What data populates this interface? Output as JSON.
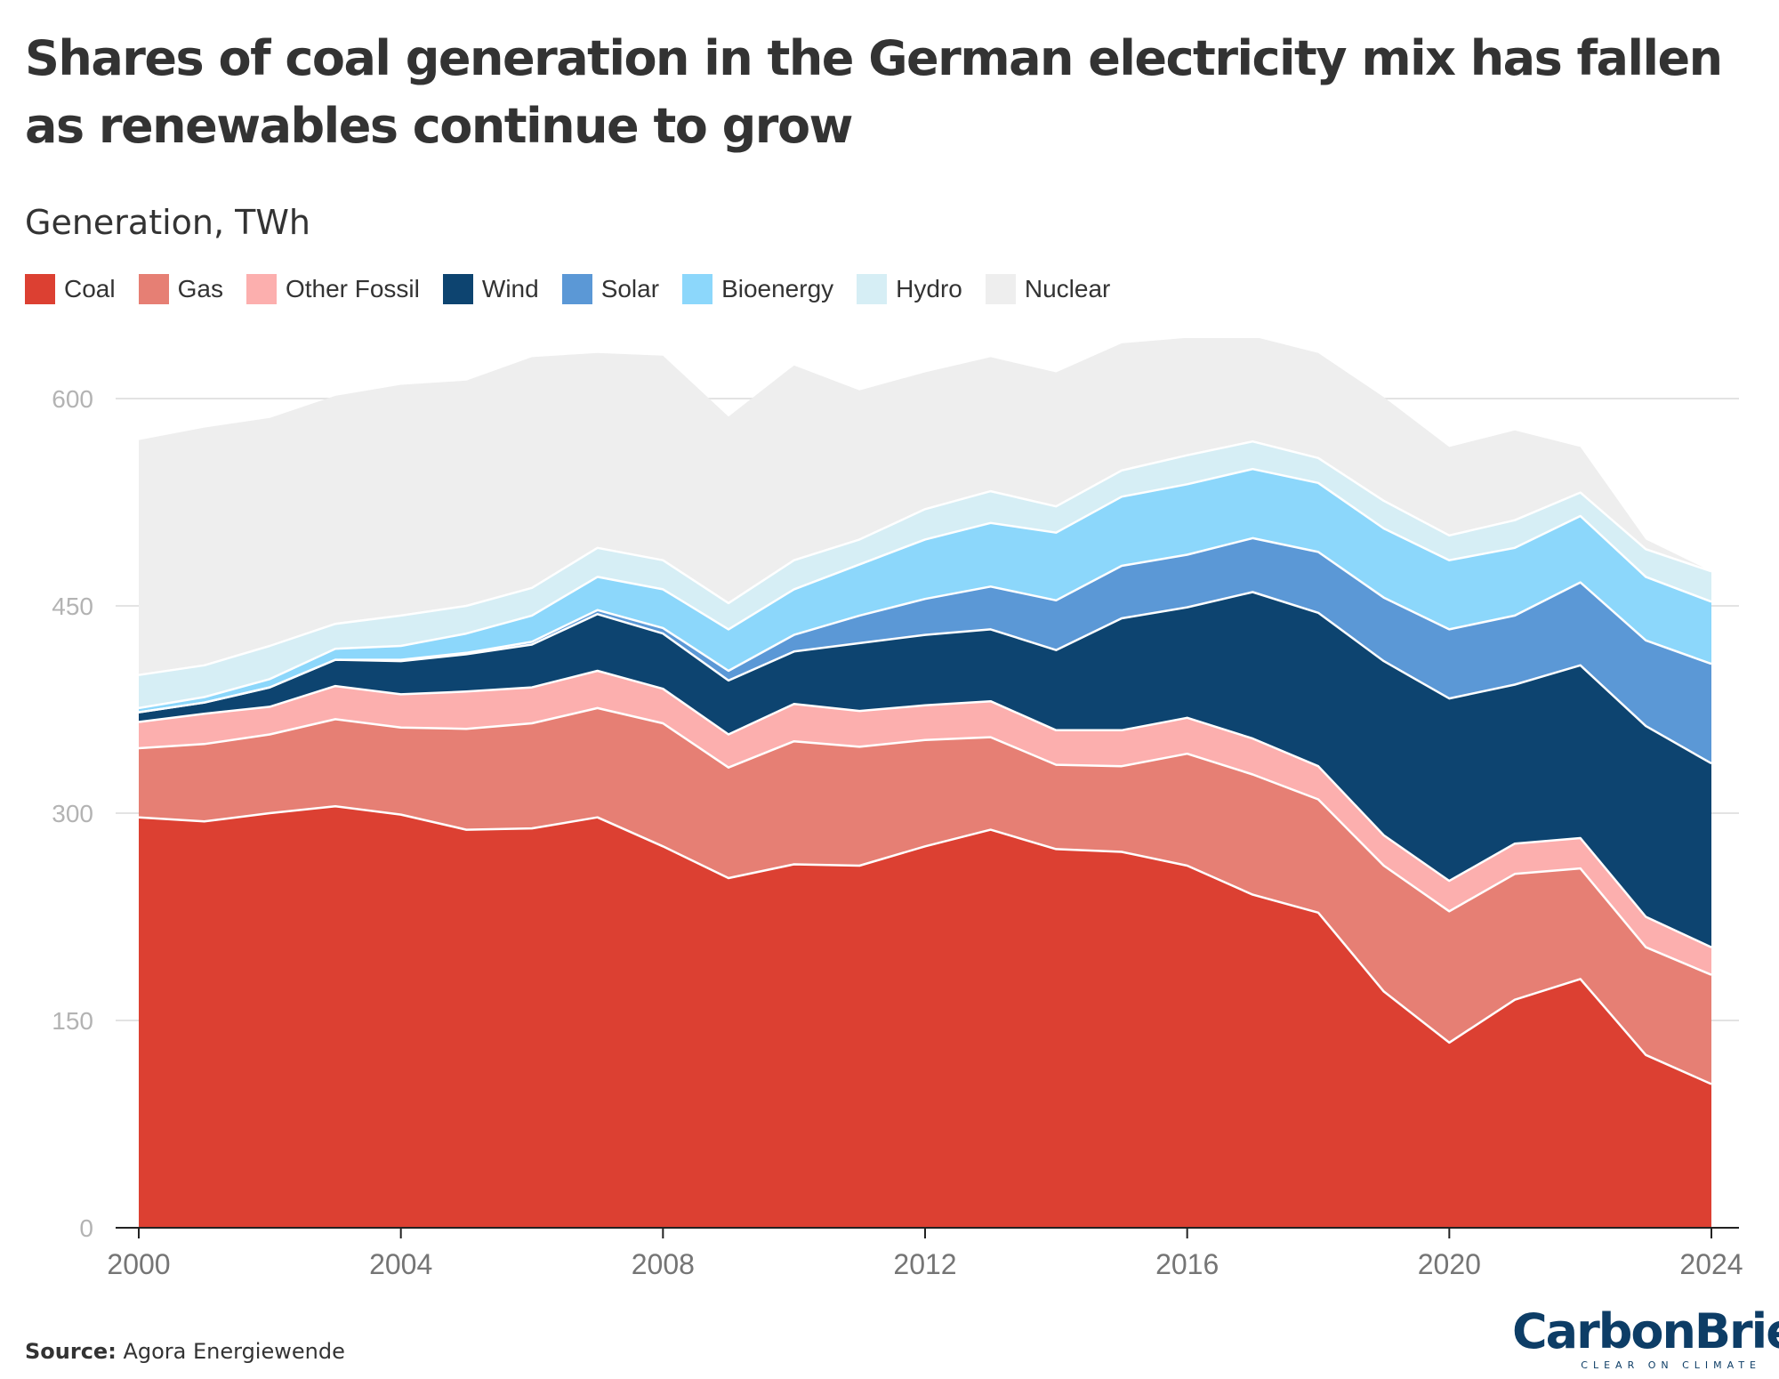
{
  "title": "Shares of coal generation in the German electricity mix has fallen as renewables continue to grow",
  "subtitle": "Generation, TWh",
  "source": {
    "label": "Source:",
    "text": "Agora Energiewende"
  },
  "logo": {
    "name": "CarbonBrief",
    "tagline": "CLEAR ON CLIMATE"
  },
  "legend": [
    {
      "label": "Coal",
      "color": "#dc4032"
    },
    {
      "label": "Gas",
      "color": "#e67f74"
    },
    {
      "label": "Other Fossil",
      "color": "#fcafae"
    },
    {
      "label": "Wind",
      "color": "#0d4470"
    },
    {
      "label": "Solar",
      "color": "#5b98d6"
    },
    {
      "label": "Bioenergy",
      "color": "#8cd7fb"
    },
    {
      "label": "Hydro",
      "color": "#d6eef5"
    },
    {
      "label": "Nuclear",
      "color": "#eeeeee"
    }
  ],
  "chart_data": {
    "type": "area",
    "stacked": true,
    "title": "Shares of coal generation in the German electricity mix has fallen as renewables continue to grow",
    "subtitle": "Generation, TWh",
    "xlabel": "",
    "ylabel": "",
    "ylim": [
      0,
      630
    ],
    "yticks": [
      0,
      150,
      300,
      450,
      600
    ],
    "xticks": [
      2000,
      2004,
      2008,
      2012,
      2016,
      2020,
      2024
    ],
    "grid": "horizontal",
    "legend_position": "top",
    "x": [
      2000,
      2001,
      2002,
      2003,
      2004,
      2005,
      2006,
      2007,
      2008,
      2009,
      2010,
      2011,
      2012,
      2013,
      2014,
      2015,
      2016,
      2017,
      2018,
      2019,
      2020,
      2021,
      2022,
      2023,
      2024
    ],
    "series": [
      {
        "name": "Coal",
        "color": "#dc4032",
        "values": [
          297,
          294,
          300,
          305,
          299,
          288,
          289,
          297,
          276,
          253,
          263,
          262,
          276,
          288,
          274,
          272,
          262,
          241,
          228,
          171,
          134,
          165,
          180,
          125,
          104
        ]
      },
      {
        "name": "Gas",
        "color": "#e67f74",
        "values": [
          50,
          56,
          57,
          63,
          63,
          73,
          76,
          79,
          89,
          80,
          89,
          86,
          77,
          67,
          61,
          62,
          81,
          87,
          82,
          91,
          95,
          91,
          80,
          78,
          79
        ]
      },
      {
        "name": "Other Fossil",
        "color": "#fcafae",
        "values": [
          19,
          22,
          20,
          24,
          24,
          27,
          26,
          27,
          25,
          24,
          27,
          26,
          25,
          26,
          25,
          26,
          26,
          26,
          24,
          22,
          22,
          22,
          22,
          22,
          20
        ]
      },
      {
        "name": "Wind",
        "color": "#0d4470",
        "values": [
          7,
          8,
          14,
          19,
          24,
          27,
          31,
          41,
          40,
          39,
          38,
          49,
          51,
          52,
          58,
          81,
          80,
          106,
          111,
          126,
          132,
          115,
          125,
          138,
          133
        ]
      },
      {
        "name": "Solar",
        "color": "#5b98d6",
        "values": [
          0,
          0,
          0,
          0,
          1,
          1,
          2,
          3,
          4,
          7,
          12,
          20,
          26,
          31,
          36,
          38,
          38,
          39,
          44,
          46,
          50,
          50,
          60,
          62,
          72
        ]
      },
      {
        "name": "Bioenergy",
        "color": "#8cd7fb",
        "values": [
          3,
          4,
          6,
          8,
          10,
          14,
          19,
          24,
          28,
          30,
          33,
          37,
          43,
          46,
          49,
          50,
          51,
          50,
          50,
          50,
          50,
          49,
          48,
          46,
          45
        ]
      },
      {
        "name": "Hydro",
        "color": "#d6eef5",
        "values": [
          24,
          23,
          24,
          18,
          22,
          20,
          20,
          21,
          21,
          19,
          21,
          18,
          22,
          23,
          19,
          19,
          21,
          20,
          18,
          20,
          18,
          20,
          17,
          20,
          22
        ]
      },
      {
        "name": "Nuclear",
        "color": "#eeeeee",
        "values": [
          170,
          172,
          165,
          165,
          167,
          163,
          167,
          141,
          148,
          135,
          141,
          108,
          99,
          97,
          97,
          92,
          85,
          76,
          76,
          75,
          64,
          65,
          33,
          7,
          0
        ]
      }
    ]
  }
}
